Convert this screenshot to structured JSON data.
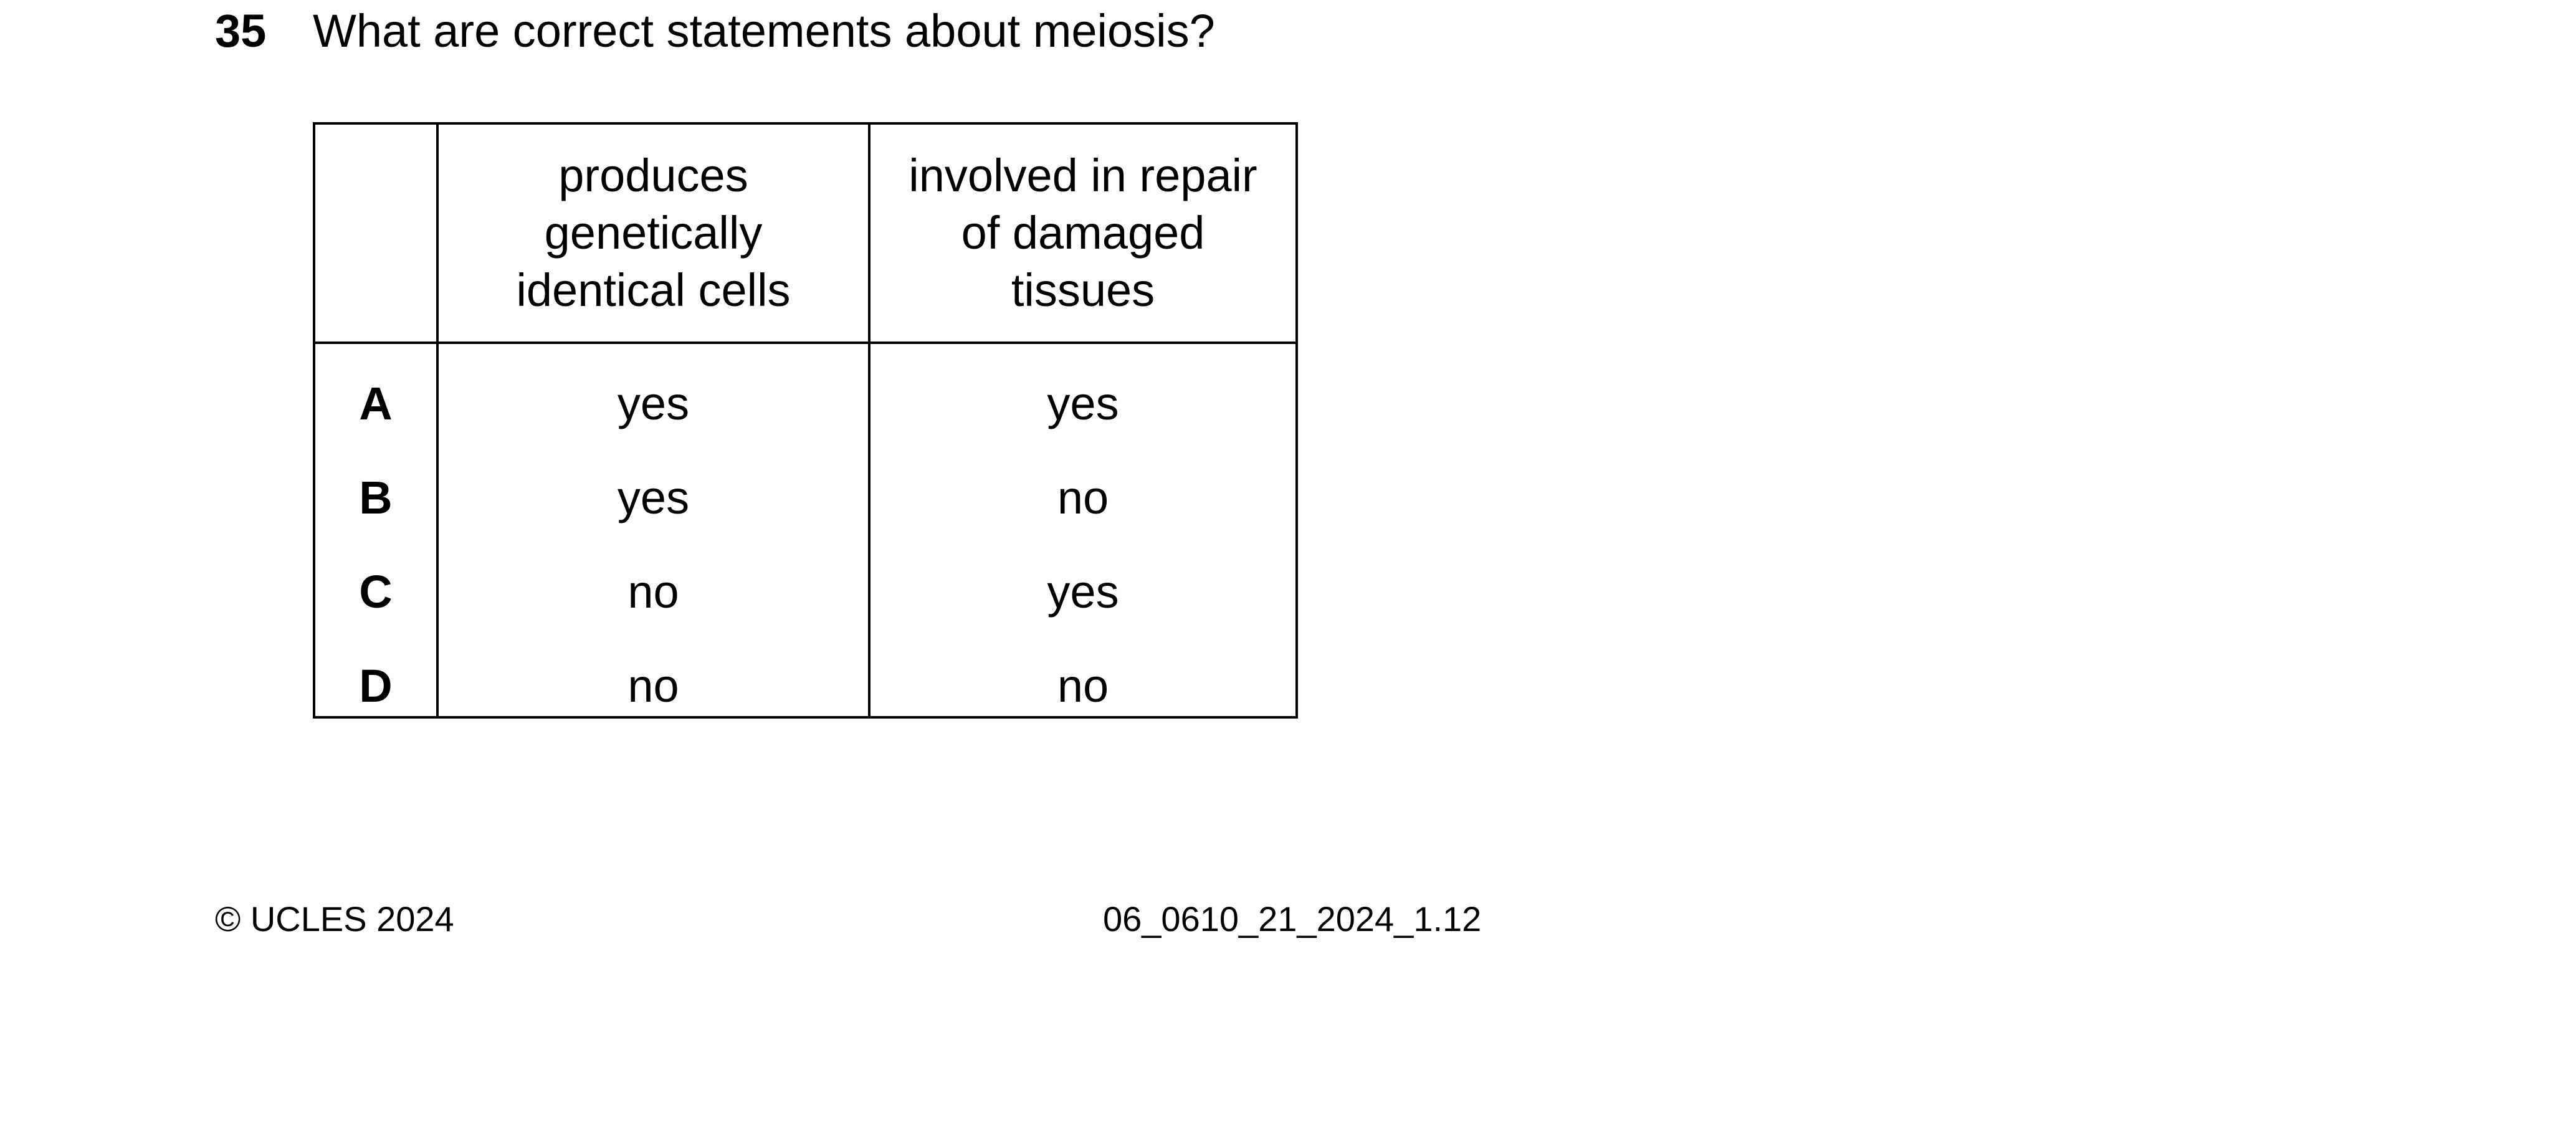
{
  "question": {
    "number": "35",
    "text": "What are correct statements about meiosis?"
  },
  "table": {
    "headers": [
      [
        "produces",
        "genetically",
        "identical cells"
      ],
      [
        "involved in repair",
        "of damaged",
        "tissues"
      ]
    ],
    "rows": [
      {
        "letter": "A",
        "col1": "yes",
        "col2": "yes"
      },
      {
        "letter": "B",
        "col1": "yes",
        "col2": "no"
      },
      {
        "letter": "C",
        "col1": "no",
        "col2": "yes"
      },
      {
        "letter": "D",
        "col1": "no",
        "col2": "no"
      }
    ]
  },
  "footer": {
    "copyright": "© UCLES 2024",
    "paper_code": "06_0610_21_2024_1.12"
  }
}
